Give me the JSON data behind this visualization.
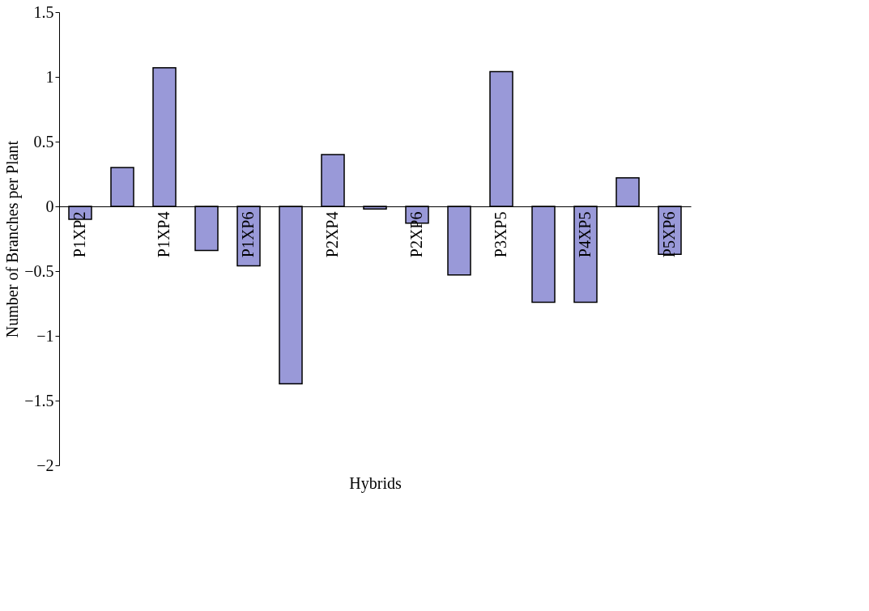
{
  "chart_data": {
    "type": "bar",
    "xlabel": "Hybrids",
    "ylabel": "Number of Branches per Plant",
    "categories": [
      "P1XP2",
      null,
      "P1XP4",
      null,
      "P1XP6",
      null,
      "P2XP4",
      null,
      "P2XP6",
      null,
      "P3XP5",
      null,
      "P4XP5",
      null,
      "P5XP6"
    ],
    "series": [
      {
        "color": "#9999d8",
        "values": [
          -0.1,
          0.3,
          1.07,
          -0.34,
          -0.46,
          -1.37,
          0.4,
          -0.02,
          -0.13,
          -0.53,
          1.04,
          -0.74,
          -0.74,
          0.22,
          -0.37
        ]
      }
    ],
    "ylim": [
      -2,
      1.5
    ],
    "yticks": [
      -2,
      -1.5,
      -1,
      -0.5,
      0,
      0.5,
      1,
      1.5
    ],
    "grid": false
  }
}
